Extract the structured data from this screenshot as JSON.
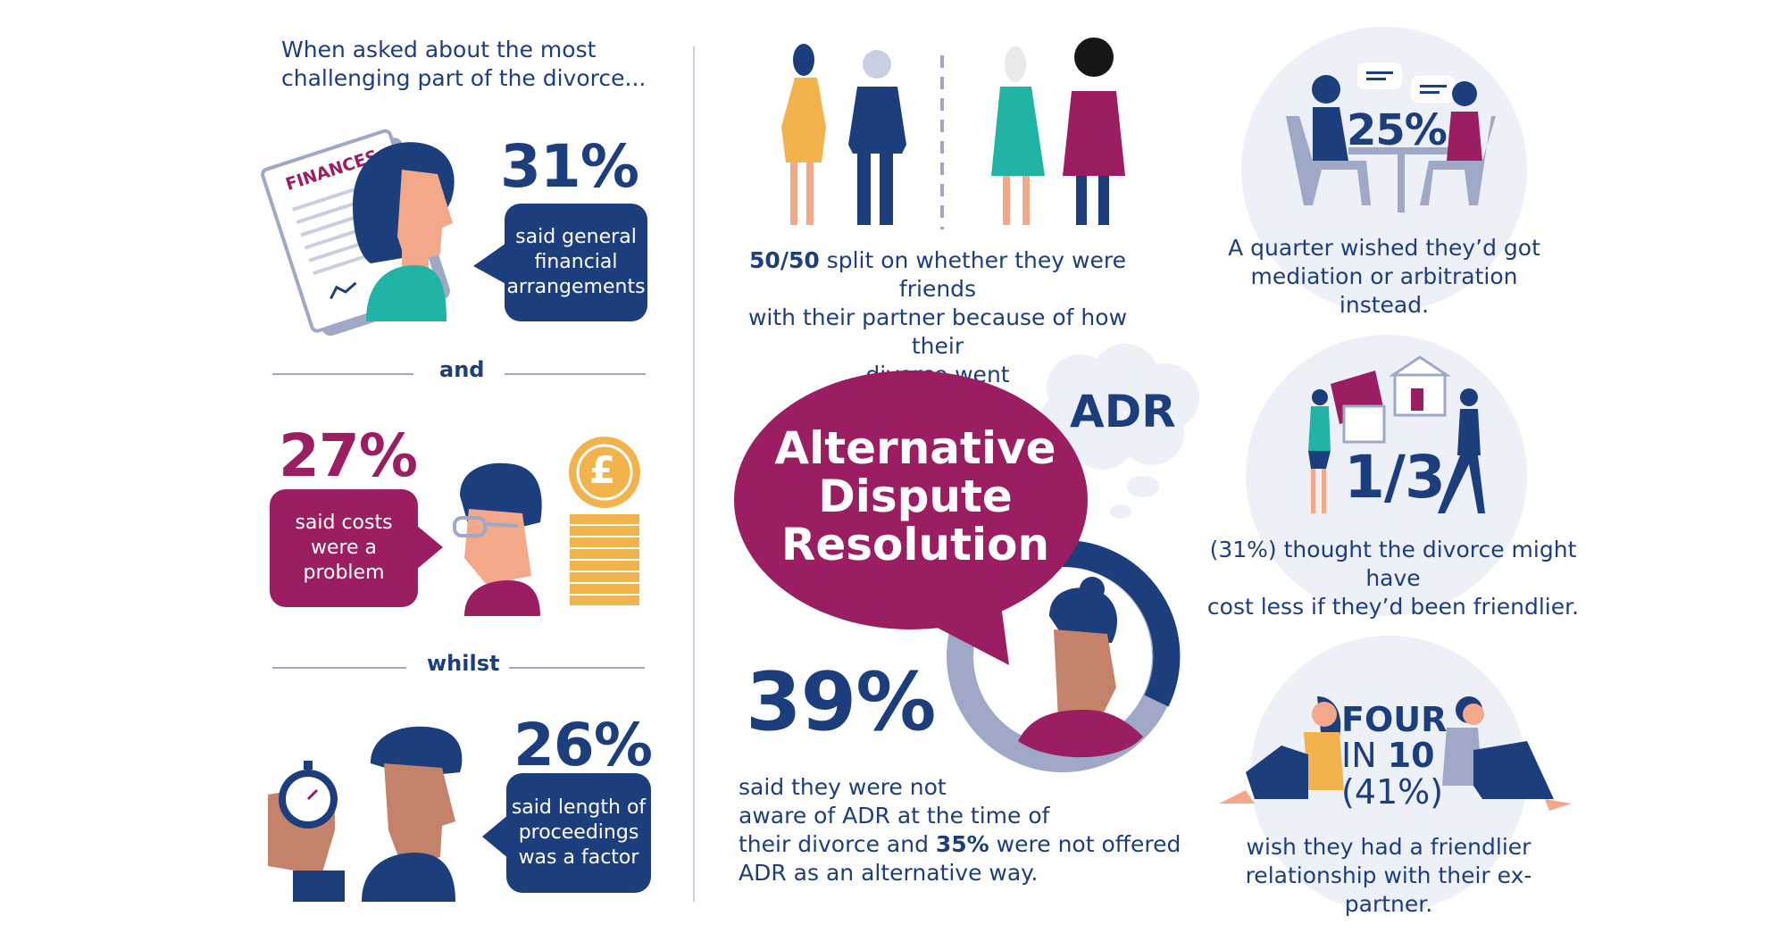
{
  "left": {
    "intro": [
      "When asked about the most",
      "challenging part of the divorce..."
    ],
    "doc_label": "FINANCES",
    "stat1": {
      "value": "31%",
      "text": [
        "said general",
        "financial",
        "arrangements"
      ]
    },
    "and_label": "and",
    "stat2": {
      "value": "27%",
      "text": [
        "said costs",
        "were a",
        "problem"
      ]
    },
    "whilst_label": "whilst",
    "stat3": {
      "value": "26%",
      "text": [
        "said length of",
        "proceedings",
        "was a factor"
      ]
    },
    "coin_symbol": "£"
  },
  "middle": {
    "split_bold": "50/50",
    "split_rest": " split on whether they were friends",
    "split_lines": [
      "with their partner because of how their",
      "divorce went"
    ],
    "adr_title": [
      "Alternative",
      "Dispute",
      "Resolution"
    ],
    "adr_thought": "ADR",
    "stat": {
      "value": "39%"
    },
    "aware_lines": [
      "said they were not",
      "aware of ADR at the time of"
    ],
    "aware_line3_pre": "their divorce and ",
    "aware_line3_bold": "35%",
    "aware_line3_post": " were not offered",
    "aware_line4": "ADR as an alternative way."
  },
  "right": {
    "mediation": {
      "value": "25%",
      "text": [
        "A quarter wished they’d got",
        "mediation or arbitration instead."
      ]
    },
    "cost": {
      "value": "1/3",
      "text": [
        "(31%) thought the divorce might have",
        "cost less if they’d been friendlier."
      ]
    },
    "friendly": {
      "line1": "FOUR",
      "line2_pre": "IN ",
      "line2_bold": "10",
      "line3": "(41%)",
      "text": [
        "wish they had a friendlier",
        "relationship with their ex-partner."
      ]
    }
  },
  "colors": {
    "navy": "#1d3e7d",
    "plum": "#9c1e62",
    "teal": "#20b3a6",
    "amber": "#f2b24c",
    "light": "#eef0f7"
  }
}
